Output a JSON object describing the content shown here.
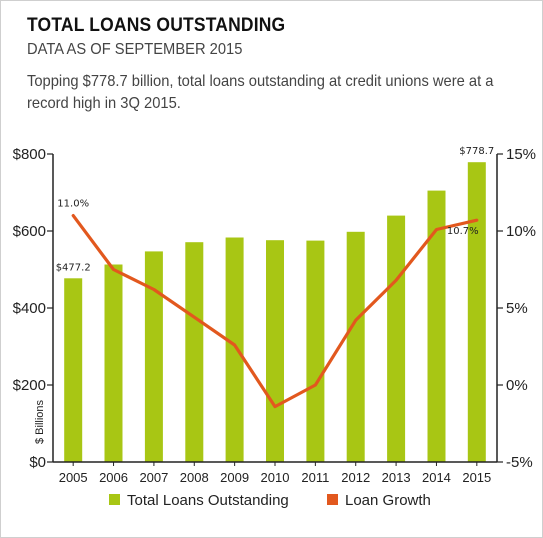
{
  "header": {
    "title": "TOTAL LOANS OUTSTANDING",
    "subtitle": "DATA AS OF SEPTEMBER 2015",
    "description": "Topping $778.7 billion, total loans outstanding at credit unions were at a record high in 3Q 2015."
  },
  "colors": {
    "bar": "#a8c614",
    "line": "#e2581e",
    "axis": "#222222"
  },
  "chart_data": {
    "type": "bar",
    "categories": [
      "2005",
      "2006",
      "2007",
      "2008",
      "2009",
      "2010",
      "2011",
      "2012",
      "2013",
      "2014",
      "2015"
    ],
    "series": [
      {
        "name": "Total Loans Outstanding",
        "type": "bar",
        "axis": "left",
        "values": [
          477.2,
          513,
          547,
          571,
          583,
          576,
          575,
          598,
          640,
          705,
          778.7
        ]
      },
      {
        "name": "Loan Growth",
        "type": "line",
        "axis": "right",
        "values": [
          11.0,
          7.5,
          6.2,
          4.4,
          2.6,
          -1.4,
          0.0,
          4.2,
          6.8,
          10.1,
          10.7
        ]
      }
    ],
    "left_axis": {
      "label": "$ Billions",
      "ylim": [
        0,
        800
      ],
      "ticks": [
        0,
        200,
        400,
        600,
        800
      ],
      "tick_labels": [
        "$0",
        "$200",
        "$400",
        "$600",
        "$800"
      ]
    },
    "right_axis": {
      "ylim": [
        -5,
        15
      ],
      "ticks": [
        -5,
        0,
        5,
        10,
        15
      ],
      "tick_labels": [
        "-5%",
        "0%",
        "5%",
        "10%",
        "15%"
      ]
    },
    "data_labels": [
      {
        "series": 0,
        "index": 0,
        "text": "$477.2"
      },
      {
        "series": 0,
        "index": 10,
        "text": "$778.7"
      },
      {
        "series": 1,
        "index": 0,
        "text": "11.0%"
      },
      {
        "series": 1,
        "index": 10,
        "text": "10.7%"
      }
    ],
    "legend": {
      "position": "bottom",
      "entries": [
        "Total Loans Outstanding",
        "Loan Growth"
      ]
    },
    "grid": false
  }
}
